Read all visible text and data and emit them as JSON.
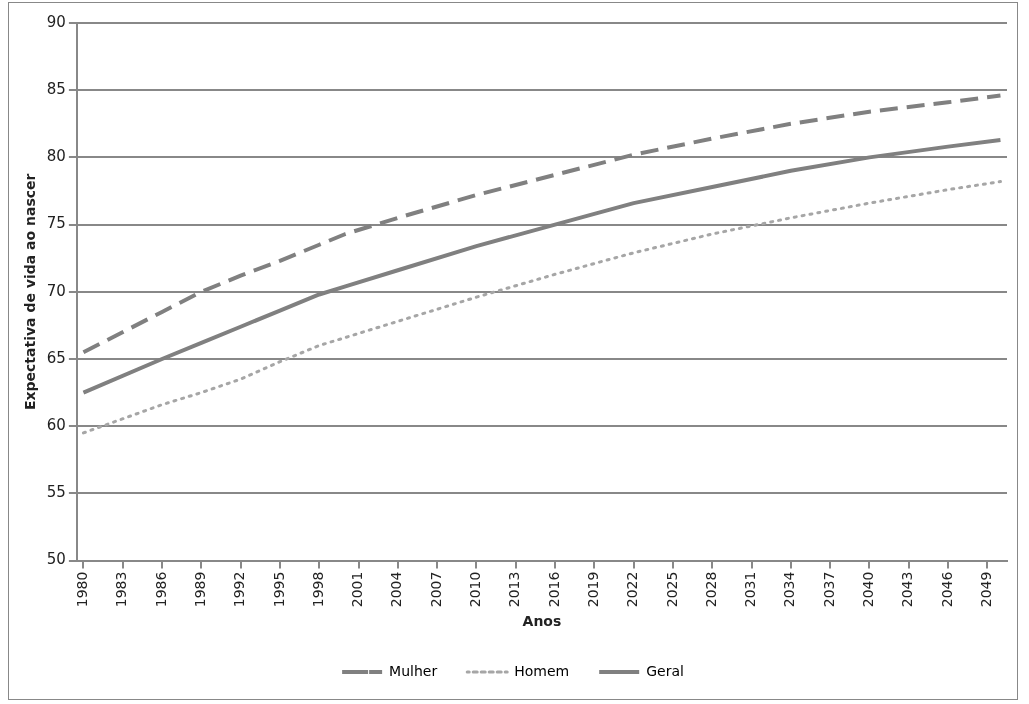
{
  "chart_data": {
    "type": "line",
    "xlabel": "Anos",
    "ylabel": "Expectativa de vida ao nascer",
    "x": [
      1980,
      1986,
      1989,
      1992,
      1995,
      1998,
      2000,
      2004,
      2010,
      2016,
      2022,
      2028,
      2034,
      2040,
      2046,
      2050
    ],
    "series": [
      {
        "name": "Mulher",
        "color": "#808080",
        "line_style": "dashed",
        "values": [
          65.5,
          68.5,
          70,
          71.2,
          72.3,
          73.5,
          74.3,
          75.5,
          77.2,
          78.7,
          80.2,
          81.4,
          82.5,
          83.4,
          84.1,
          84.6
        ]
      },
      {
        "name": "Homem",
        "color": "#a6a6a6",
        "line_style": "dotted",
        "values": [
          59.5,
          61.6,
          62.5,
          63.5,
          64.8,
          66,
          66.6,
          67.8,
          69.6,
          71.3,
          72.9,
          74.3,
          75.5,
          76.6,
          77.6,
          78.2
        ]
      },
      {
        "name": "Geral",
        "color": "#808080",
        "line_style": "solid",
        "values": [
          62.5,
          65,
          66.2,
          67.4,
          68.6,
          69.8,
          70.4,
          71.6,
          73.4,
          75,
          76.6,
          77.8,
          79,
          80,
          80.8,
          81.3
        ]
      }
    ],
    "xlim": [
      1979.5,
      2050.5
    ],
    "xticks": [
      1980,
      1983,
      1986,
      1989,
      1992,
      1995,
      1998,
      2001,
      2004,
      2007,
      2010,
      2013,
      2016,
      2019,
      2022,
      2025,
      2028,
      2031,
      2034,
      2037,
      2040,
      2043,
      2046,
      2049
    ],
    "ylim": [
      50,
      90
    ],
    "yticks": [
      50,
      55,
      60,
      65,
      70,
      75,
      80,
      85,
      90
    ],
    "grid": "y",
    "legend": "bottom",
    "marker": "none"
  }
}
